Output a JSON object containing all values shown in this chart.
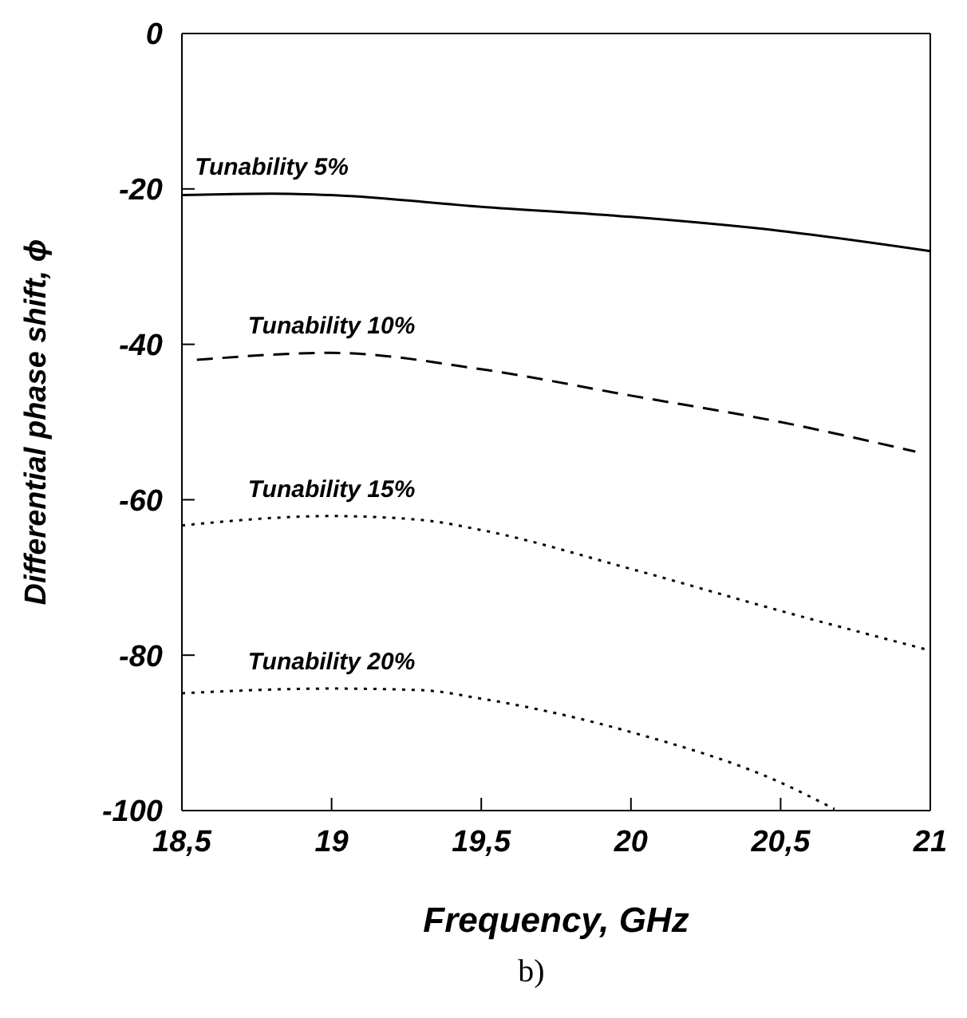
{
  "chart_data": {
    "type": "line",
    "xlabel": "Frequency, GHz",
    "ylabel": "Differential phase shift, ϕ",
    "annotations": [
      "b)"
    ],
    "xlim": [
      18.5,
      21
    ],
    "xticks": [
      {
        "value": 18.5,
        "label": "18,5"
      },
      19,
      {
        "value": 19.5,
        "label": "19,5"
      },
      20,
      {
        "value": 20.5,
        "label": "20,5"
      },
      21
    ],
    "ylim": [
      -100,
      0
    ],
    "yticks": [
      -100,
      -80,
      -60,
      -40,
      -20,
      0
    ],
    "grid": false,
    "legend": false,
    "marker": "none",
    "series": [
      {
        "name": "Tunability 5%",
        "color": "#000000",
        "line_style": "solid",
        "x": [
          18.5,
          18.8,
          19,
          19.5,
          20,
          20.5,
          21
        ],
        "values": [
          -20.8,
          -20.6,
          -20.8,
          -22.3,
          -23.6,
          -25.4,
          -28
        ]
      },
      {
        "name": "Tunability 10%",
        "color": "#000000",
        "line_style": "dashed",
        "x": [
          18.55,
          19,
          19.5,
          20,
          20.5,
          20.95
        ],
        "values": [
          -42,
          -41.1,
          -43.2,
          -46.6,
          -50,
          -53.8
        ]
      },
      {
        "name": "Tunability 15%",
        "color": "#000000",
        "line_style": "dotted",
        "x": [
          18.5,
          19,
          19.3,
          19.5,
          20,
          20.5,
          21
        ],
        "values": [
          -63.3,
          -62.1,
          -62.6,
          -63.9,
          -68.9,
          -74.3,
          -79.4
        ]
      },
      {
        "name": "Tunability 20%",
        "color": "#000000",
        "line_style": "dotted",
        "x": [
          18.5,
          19,
          19.3,
          19.5,
          20,
          20.5,
          20.68
        ],
        "values": [
          -84.9,
          -84.3,
          -84.5,
          -85.6,
          -89.9,
          -96.4,
          -99.8
        ]
      }
    ]
  }
}
